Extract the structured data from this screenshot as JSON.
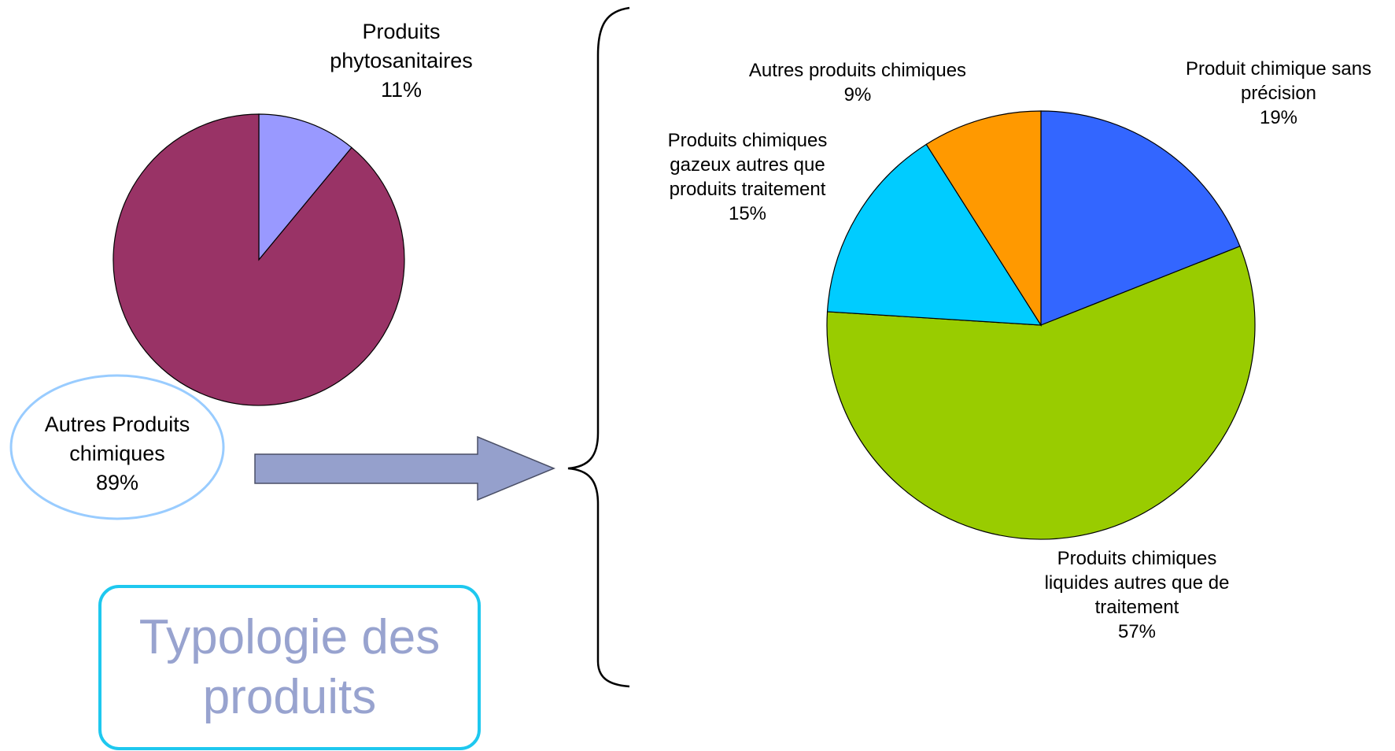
{
  "chart_data": [
    {
      "type": "pie",
      "slices": [
        {
          "label_lines": [
            "Produits",
            "phytosanitaires",
            "11%"
          ],
          "value": 11,
          "color": "#9999ff"
        },
        {
          "label_lines": [
            "Autres Produits",
            "chimiques",
            "89%"
          ],
          "value": 89,
          "color": "#993366"
        }
      ]
    },
    {
      "type": "pie",
      "slices": [
        {
          "label_lines": [
            "Produit chimique sans",
            "précision",
            "19%"
          ],
          "value": 19,
          "color": "#3366ff"
        },
        {
          "label_lines": [
            "Produits chimiques",
            "liquides autres que de",
            "traitement",
            "57%"
          ],
          "value": 57,
          "color": "#99cc00"
        },
        {
          "label_lines": [
            "Produits chimiques",
            "gazeux autres que",
            "produits traitement",
            "15%"
          ],
          "value": 15,
          "color": "#00ccff"
        },
        {
          "label_lines": [
            "Autres produits chimiques",
            "9%"
          ],
          "value": 9,
          "color": "#ff9900"
        }
      ]
    }
  ],
  "title_box": {
    "line1": "Typologie des",
    "line2": "produits"
  },
  "colors": {
    "arrow": "#95a0cc",
    "ellipse": "#99ccff",
    "title_border": "#1ec8ef",
    "title_text": "#98a3cf"
  }
}
